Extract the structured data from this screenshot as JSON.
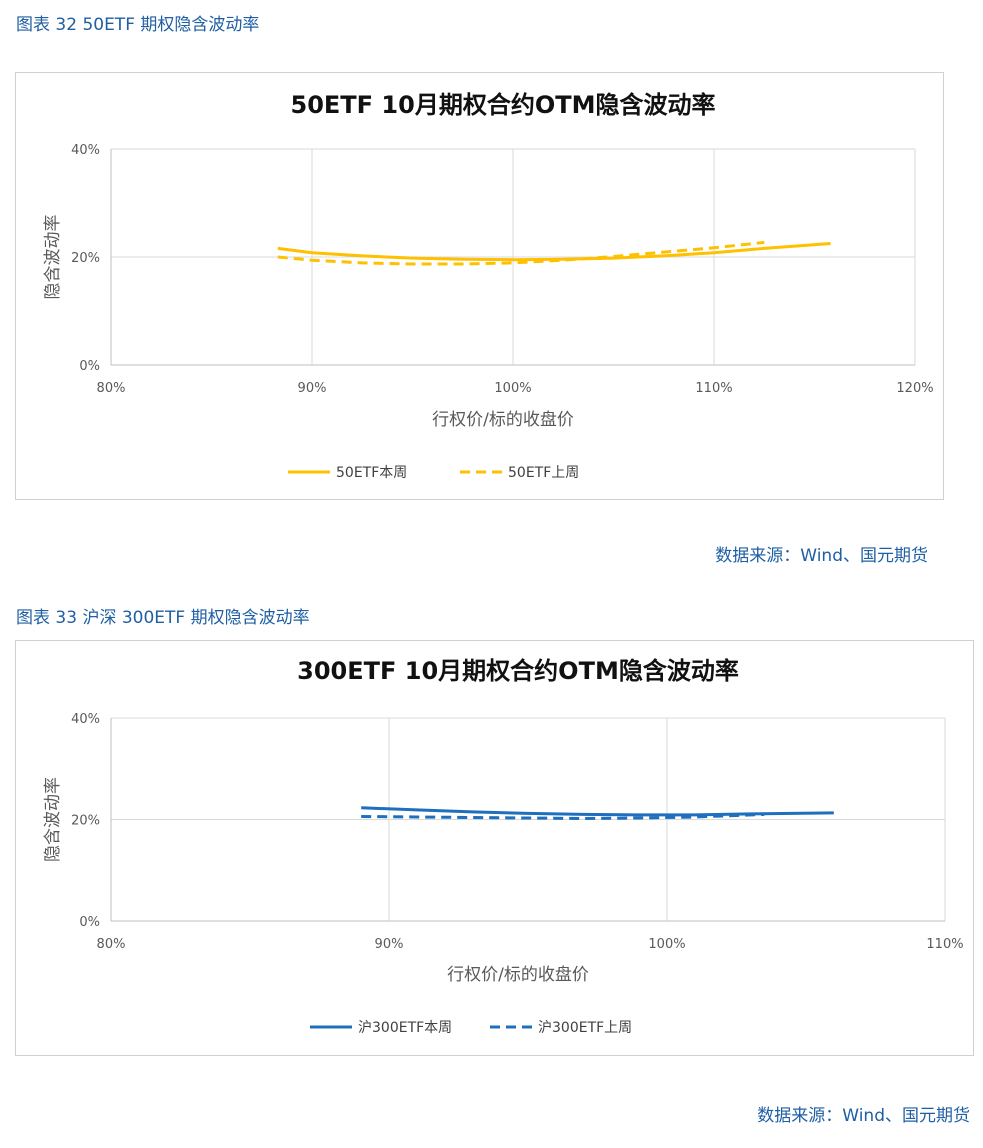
{
  "figures": [
    {
      "caption": "图表 32 50ETF 期权隐含波动率",
      "source": "数据来源：Wind、国元期货",
      "chart_data": {
        "type": "line",
        "title": "50ETF 10月期权合约OTM隐含波动率",
        "xlabel": "行权价/标的收盘价",
        "ylabel": "隐含波动率",
        "xlim": [
          0.8,
          1.2
        ],
        "ylim": [
          0,
          0.4
        ],
        "x_ticks": [
          "80%",
          "90%",
          "100%",
          "110%",
          "120%"
        ],
        "y_ticks": [
          "0%",
          "20%",
          "40%"
        ],
        "grid": true,
        "legend_position": "bottom",
        "series": [
          {
            "name": "50ETF本周",
            "color": "#FFC000",
            "style": "solid",
            "x": [
              0.883,
              0.9,
              0.925,
              0.95,
              0.975,
              1.0,
              1.025,
              1.05,
              1.075,
              1.1,
              1.125,
              1.158
            ],
            "y": [
              0.216,
              0.208,
              0.202,
              0.198,
              0.196,
              0.195,
              0.196,
              0.198,
              0.202,
              0.208,
              0.216,
              0.225
            ]
          },
          {
            "name": "50ETF上周",
            "color": "#FFC000",
            "style": "dashed",
            "x": [
              0.883,
              0.9,
              0.925,
              0.95,
              0.975,
              1.0,
              1.025,
              1.05,
              1.075,
              1.1,
              1.125
            ],
            "y": [
              0.2,
              0.194,
              0.189,
              0.187,
              0.187,
              0.189,
              0.194,
              0.201,
              0.209,
              0.217,
              0.227
            ]
          }
        ]
      }
    },
    {
      "caption": "图表 33 沪深 300ETF 期权隐含波动率",
      "source": "数据来源：Wind、国元期货",
      "chart_data": {
        "type": "line",
        "title": "300ETF 10月期权合约OTM隐含波动率",
        "xlabel": "行权价/标的收盘价",
        "ylabel": "隐含波动率",
        "xlim": [
          0.8,
          1.1
        ],
        "ylim": [
          0,
          0.4
        ],
        "x_ticks": [
          "80%",
          "90%",
          "100%",
          "110%"
        ],
        "y_ticks": [
          "0%",
          "20%",
          "40%"
        ],
        "grid": true,
        "legend_position": "bottom",
        "series": [
          {
            "name": "沪300ETF本周",
            "color": "#1F6FBF",
            "style": "solid",
            "x": [
              0.89,
              0.91,
              0.93,
              0.95,
              0.97,
              0.99,
              1.01,
              1.03,
              1.06
            ],
            "y": [
              0.223,
              0.219,
              0.215,
              0.212,
              0.21,
              0.209,
              0.209,
              0.211,
              0.213
            ]
          },
          {
            "name": "沪300ETF上周",
            "color": "#1F6FBF",
            "style": "dashed",
            "x": [
              0.89,
              0.91,
              0.93,
              0.95,
              0.97,
              0.99,
              1.01,
              1.035
            ],
            "y": [
              0.206,
              0.205,
              0.204,
              0.203,
              0.202,
              0.203,
              0.205,
              0.21
            ]
          }
        ]
      }
    }
  ]
}
